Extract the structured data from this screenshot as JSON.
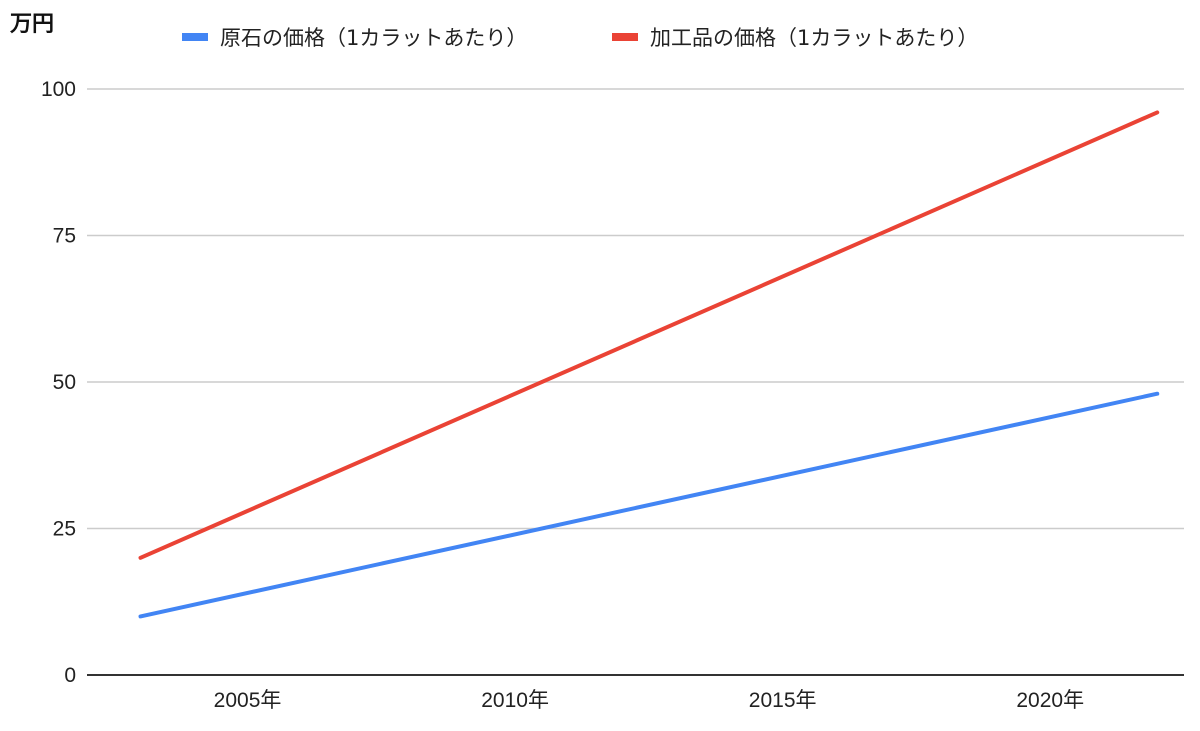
{
  "chart_data": {
    "type": "line",
    "unit_label": "万円",
    "x": [
      2003,
      2022
    ],
    "x_ticks": [
      2005,
      2010,
      2015,
      2020
    ],
    "x_tick_labels": [
      "2005年",
      "2010年",
      "2015年",
      "2020年"
    ],
    "ylim": [
      0,
      100
    ],
    "y_ticks": [
      0,
      25,
      50,
      75,
      100
    ],
    "y_tick_labels": [
      "0",
      "25",
      "50",
      "75",
      "100"
    ],
    "grid": true,
    "legend_position": "top",
    "series": [
      {
        "name": "原石の価格（1カラットあたり）",
        "color": "#4285f4",
        "values": [
          10,
          48
        ]
      },
      {
        "name": "加工品の価格（1カラットあたり）",
        "color": "#ea4335",
        "values": [
          20,
          96
        ]
      }
    ]
  }
}
